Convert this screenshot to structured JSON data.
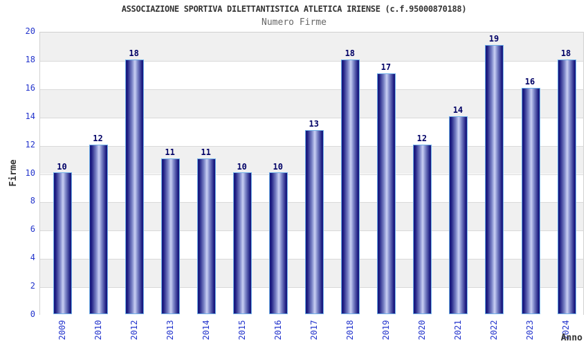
{
  "chart_data": {
    "type": "bar",
    "title": "ASSOCIAZIONE SPORTIVA DILETTANTISTICA ATLETICA IRIENSE (c.f.95000870188)",
    "subtitle": "Numero Firme",
    "xlabel": "Anno",
    "ylabel": "Firme",
    "categories": [
      "2009",
      "2010",
      "2012",
      "2013",
      "2014",
      "2015",
      "2016",
      "2017",
      "2018",
      "2019",
      "2020",
      "2021",
      "2022",
      "2023",
      "2024"
    ],
    "values": [
      10,
      12,
      18,
      11,
      11,
      10,
      10,
      13,
      18,
      17,
      12,
      14,
      19,
      16,
      18
    ],
    "ylim": [
      0,
      20
    ],
    "ytick_step": 2,
    "legend_position": "none",
    "grid": "horizontal-bands-alternating",
    "x_tick_rotation_deg": -90,
    "colors": {
      "title": "#333333",
      "subtitle": "#666666",
      "axis_title": "#333333",
      "tick_label": "#2233cc",
      "value_label": "#000066",
      "bar_dark": "#1a1a80",
      "bar_mid": "#7d86c8",
      "bar_light": "#c9d0f4",
      "bar_border": "#6fb0e8",
      "band_gray": "#f0f0f0",
      "band_white": "#ffffff",
      "gridline": "#d9d9d9",
      "plot_border": "#d0d0d0",
      "background": "#ffffff"
    }
  }
}
